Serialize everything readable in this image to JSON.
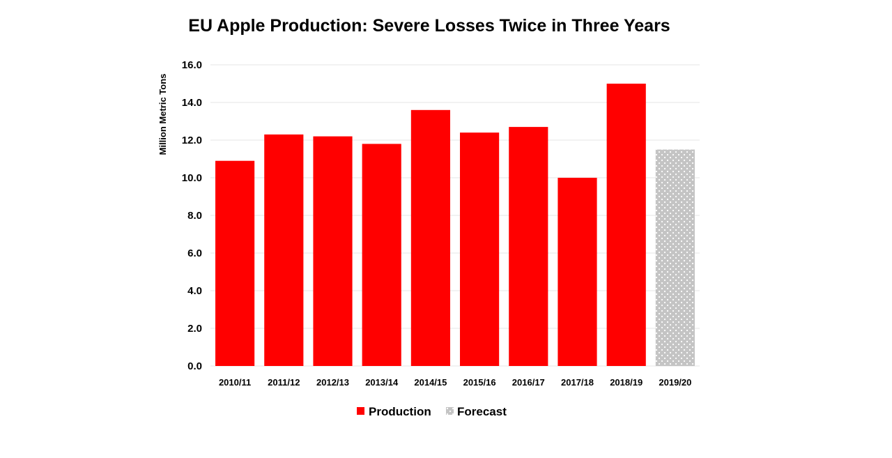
{
  "chart_data": {
    "type": "bar",
    "title": "EU Apple Production:  Severe Losses Twice in Three Years",
    "xlabel": "",
    "ylabel": "Million Metric Tons",
    "ylim": [
      0,
      16
    ],
    "yticks": [
      "0.0",
      "2.0",
      "4.0",
      "6.0",
      "8.0",
      "10.0",
      "12.0",
      "14.0",
      "16.0"
    ],
    "grid": true,
    "legend_position": "bottom",
    "categories": [
      "2010/11",
      "2011/12",
      "2012/13",
      "2013/14",
      "2014/15",
      "2015/16",
      "2016/17",
      "2017/18",
      "2018/19",
      "2019/20"
    ],
    "values": [
      10.9,
      12.3,
      12.2,
      11.8,
      13.6,
      12.4,
      12.7,
      10.0,
      15.0,
      11.5
    ],
    "bar_series": [
      "Production",
      "Production",
      "Production",
      "Production",
      "Production",
      "Production",
      "Production",
      "Production",
      "Production",
      "Forecast"
    ],
    "series": [
      {
        "name": "Production",
        "color": "#ff0000"
      },
      {
        "name": "Forecast",
        "color": "#c8c8c8"
      }
    ]
  }
}
